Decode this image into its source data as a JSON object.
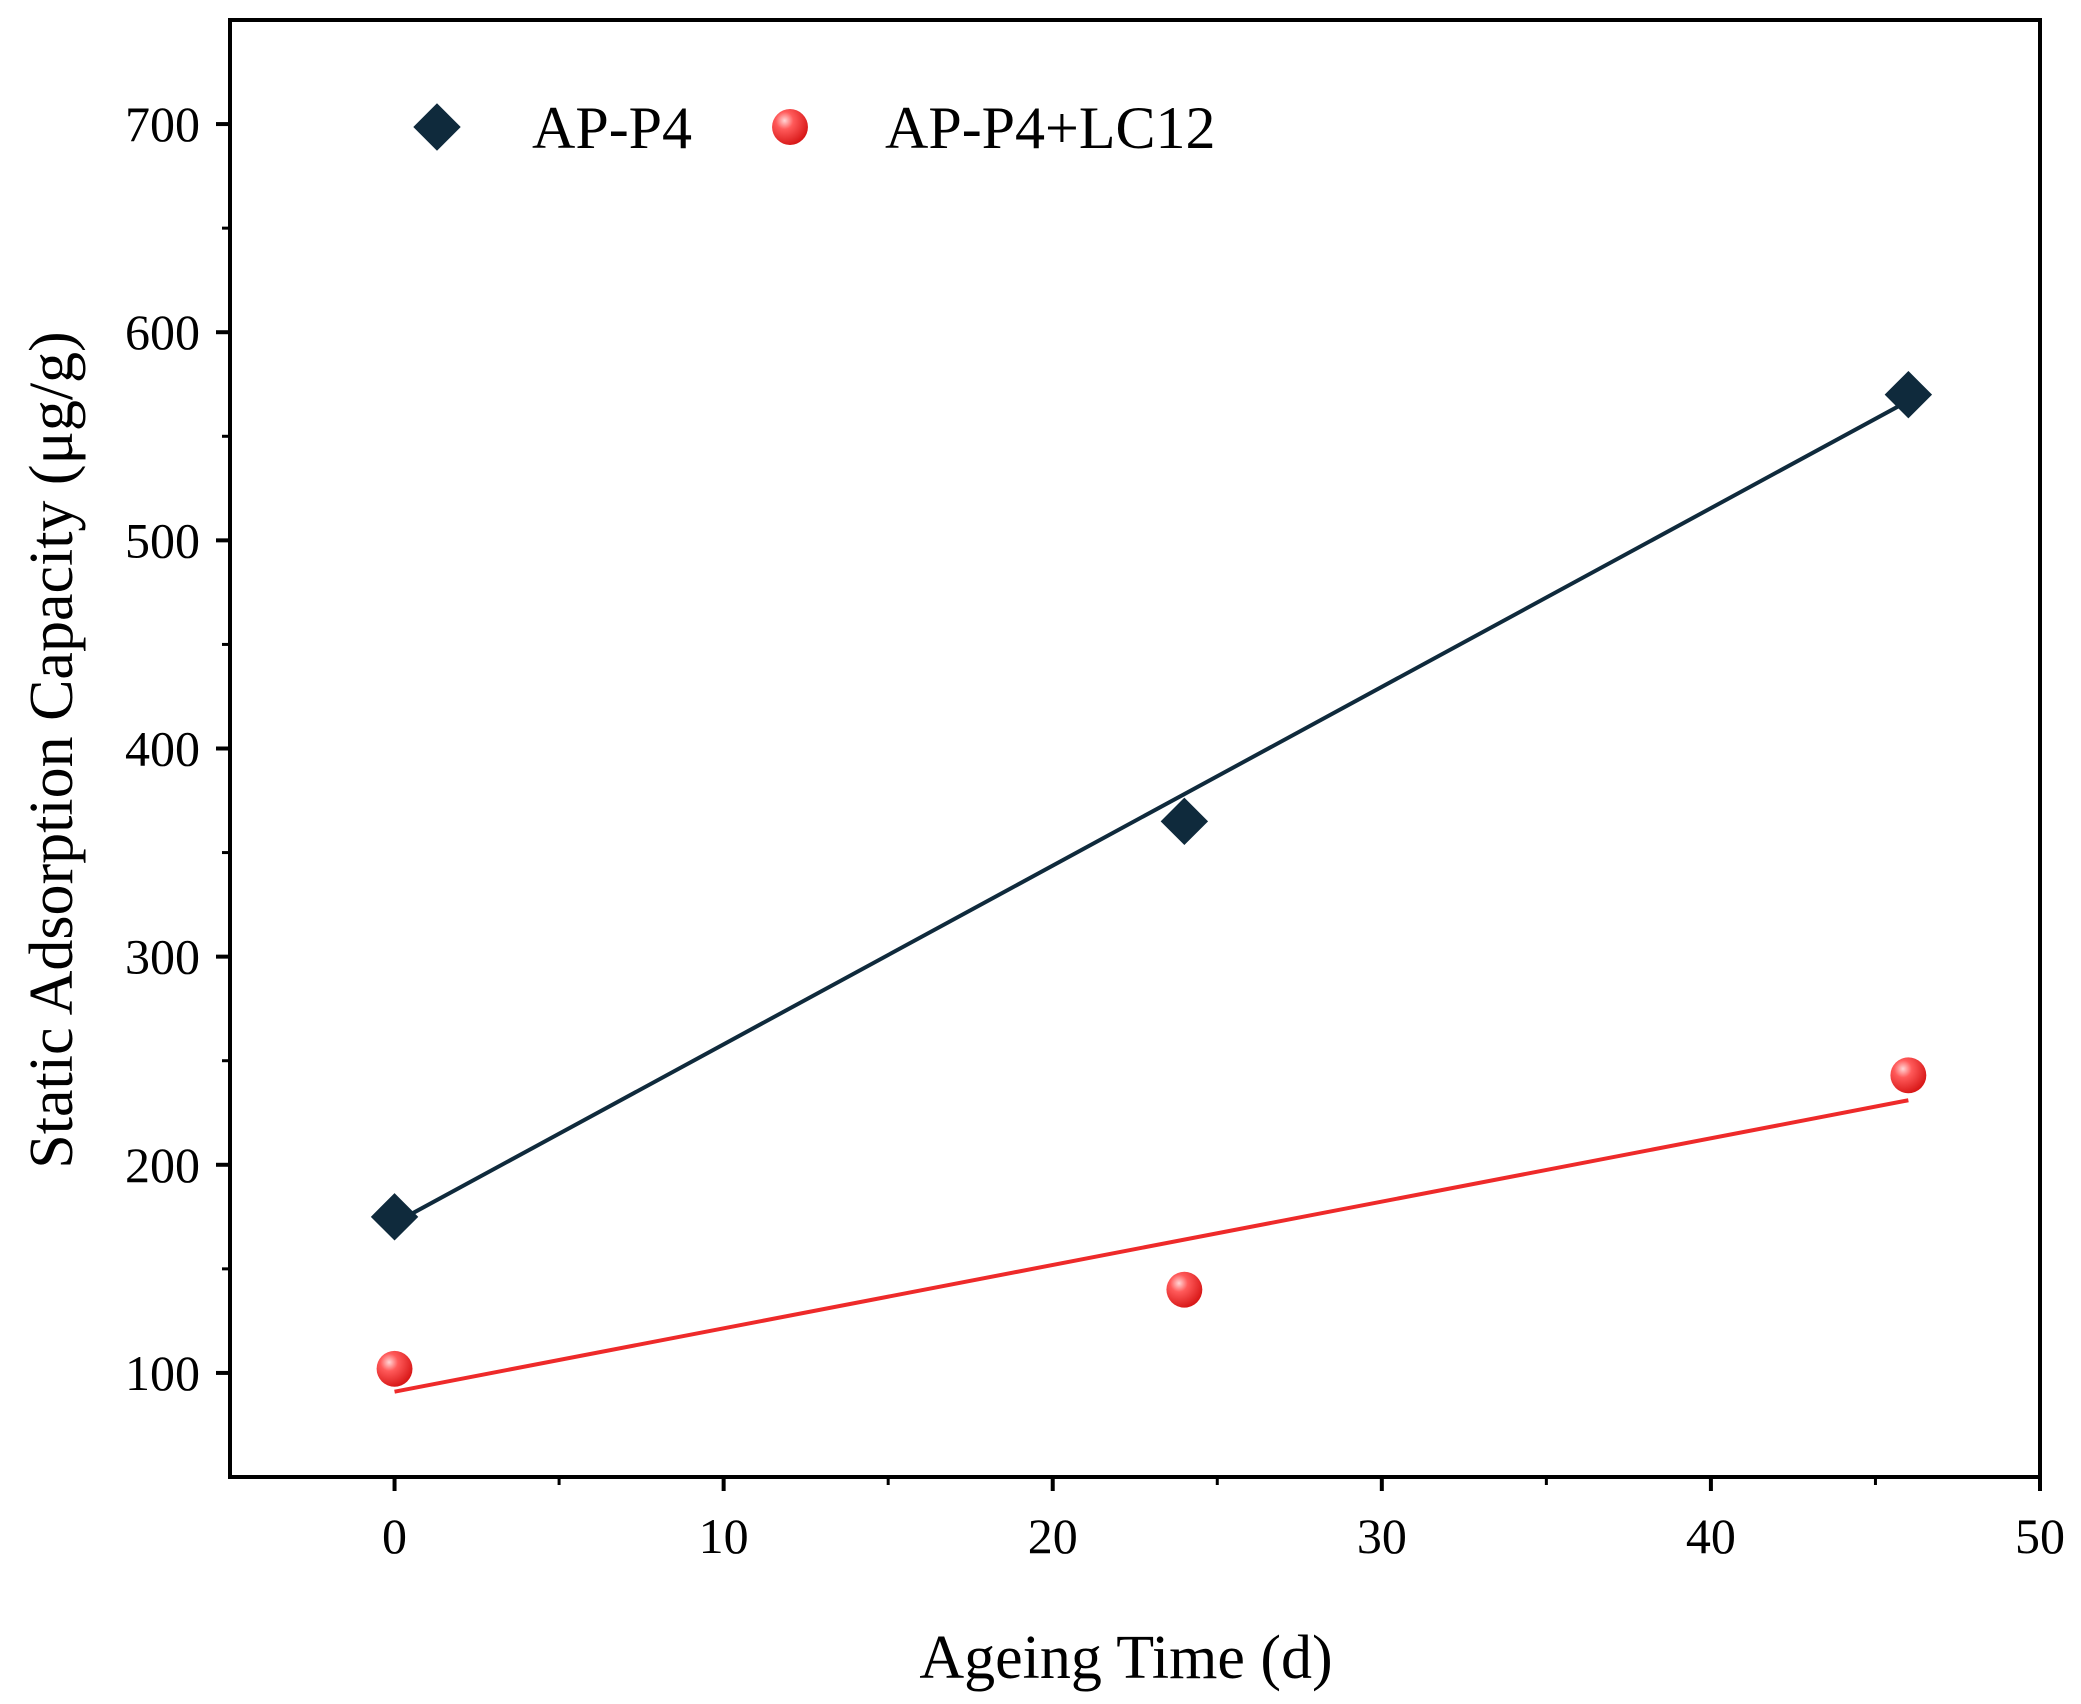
{
  "chart_data": {
    "type": "scatter",
    "xlabel": "Ageing Time (d)",
    "ylabel": "Static Adsorption Capacity (μg/g)",
    "xlim": [
      -5,
      50
    ],
    "ylim": [
      50,
      750
    ],
    "x_ticks": [
      0,
      10,
      20,
      30,
      40,
      50
    ],
    "y_ticks": [
      100,
      200,
      300,
      400,
      500,
      600,
      700
    ],
    "x_minor_step": 5,
    "y_minor_step": 50,
    "grid": false,
    "legend_position": "top-left",
    "series": [
      {
        "name": "AP-P4",
        "marker": "diamond",
        "color": "#0f2a3c",
        "x": [
          0,
          24,
          46
        ],
        "y": [
          175,
          365,
          570
        ],
        "fit_line": {
          "x": [
            0,
            46
          ],
          "y": [
            172,
            567
          ]
        }
      },
      {
        "name": "AP-P4+LC12",
        "marker": "sphere",
        "color": "#ee2a2a",
        "x": [
          0,
          24,
          46
        ],
        "y": [
          102,
          140,
          243
        ],
        "fit_line": {
          "x": [
            0,
            46
          ],
          "y": [
            91,
            231
          ]
        }
      }
    ]
  }
}
